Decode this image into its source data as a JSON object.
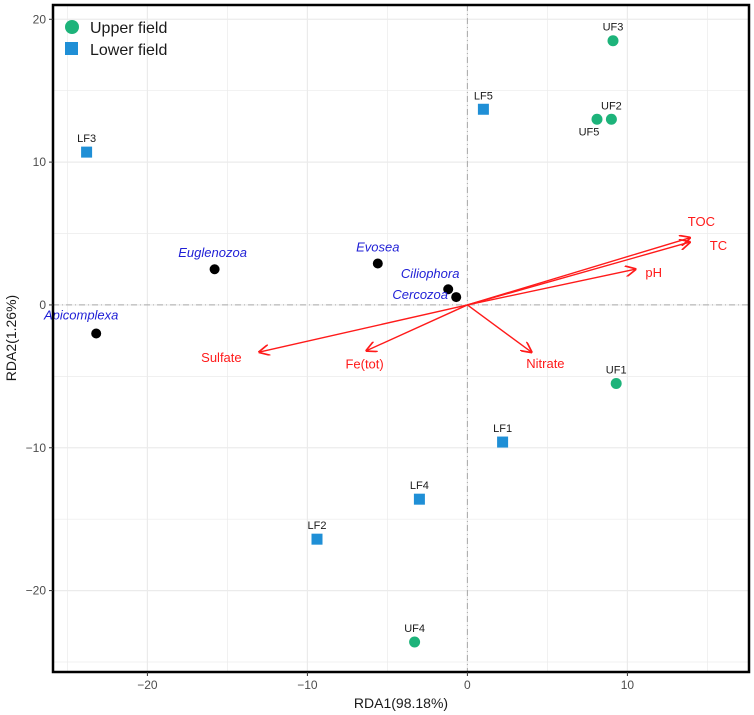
{
  "chart_data": {
    "type": "scatter",
    "title": "",
    "xlabel": "RDA1(98.18%)",
    "ylabel": "RDA2(1.26%)",
    "xlim": [
      -25.9,
      17.6
    ],
    "ylim": [
      -25.7,
      21
    ],
    "xticks": [
      -20,
      -10,
      0,
      10
    ],
    "yticks": [
      -20,
      -10,
      0,
      10,
      20
    ],
    "grid": true,
    "legend_position": "top-left",
    "series": [
      {
        "name": "Upper field",
        "marker": "circle",
        "color": "#1db37a",
        "points": [
          {
            "label": "UF1",
            "x": 9.3,
            "y": -5.5
          },
          {
            "label": "UF2",
            "x": 9.0,
            "y": 13.0
          },
          {
            "label": "UF3",
            "x": 9.1,
            "y": 18.5
          },
          {
            "label": "UF4",
            "x": -3.3,
            "y": -23.6
          },
          {
            "label": "UF5",
            "x": 8.1,
            "y": 13.0
          }
        ]
      },
      {
        "name": "Lower field",
        "marker": "square",
        "color": "#1f8fd6",
        "points": [
          {
            "label": "LF1",
            "x": 2.2,
            "y": -9.6
          },
          {
            "label": "LF2",
            "x": -9.4,
            "y": -16.4
          },
          {
            "label": "LF3",
            "x": -23.8,
            "y": 10.7
          },
          {
            "label": "LF4",
            "x": -3.0,
            "y": -13.6
          },
          {
            "label": "LF5",
            "x": 1.0,
            "y": 13.7
          }
        ]
      }
    ],
    "taxa": {
      "color": "#000000",
      "label_color": "#1f1fd6",
      "points": [
        {
          "label": "Euglenozoa",
          "x": -15.8,
          "y": 2.5
        },
        {
          "label": "Evosea",
          "x": -5.6,
          "y": 2.9
        },
        {
          "label": "Ciliophora",
          "x": -1.2,
          "y": 1.1
        },
        {
          "label": "Cercozoa",
          "x": -0.7,
          "y": 0.55
        },
        {
          "label": "Apicomplexa",
          "x": -23.2,
          "y": -2.0
        }
      ]
    },
    "environment_arrows": {
      "color": "#ff1a1a",
      "vectors": [
        {
          "label": "TOC",
          "x": 13.9,
          "y": 4.7
        },
        {
          "label": "TC",
          "x": 13.9,
          "y": 4.4
        },
        {
          "label": "pH",
          "x": 10.5,
          "y": 2.5
        },
        {
          "label": "Sulfate",
          "x": -13.0,
          "y": -3.3
        },
        {
          "label": "Fe(tot)",
          "x": -6.3,
          "y": -3.2
        },
        {
          "label": "Nitrate",
          "x": 4.0,
          "y": -3.3
        }
      ]
    }
  }
}
